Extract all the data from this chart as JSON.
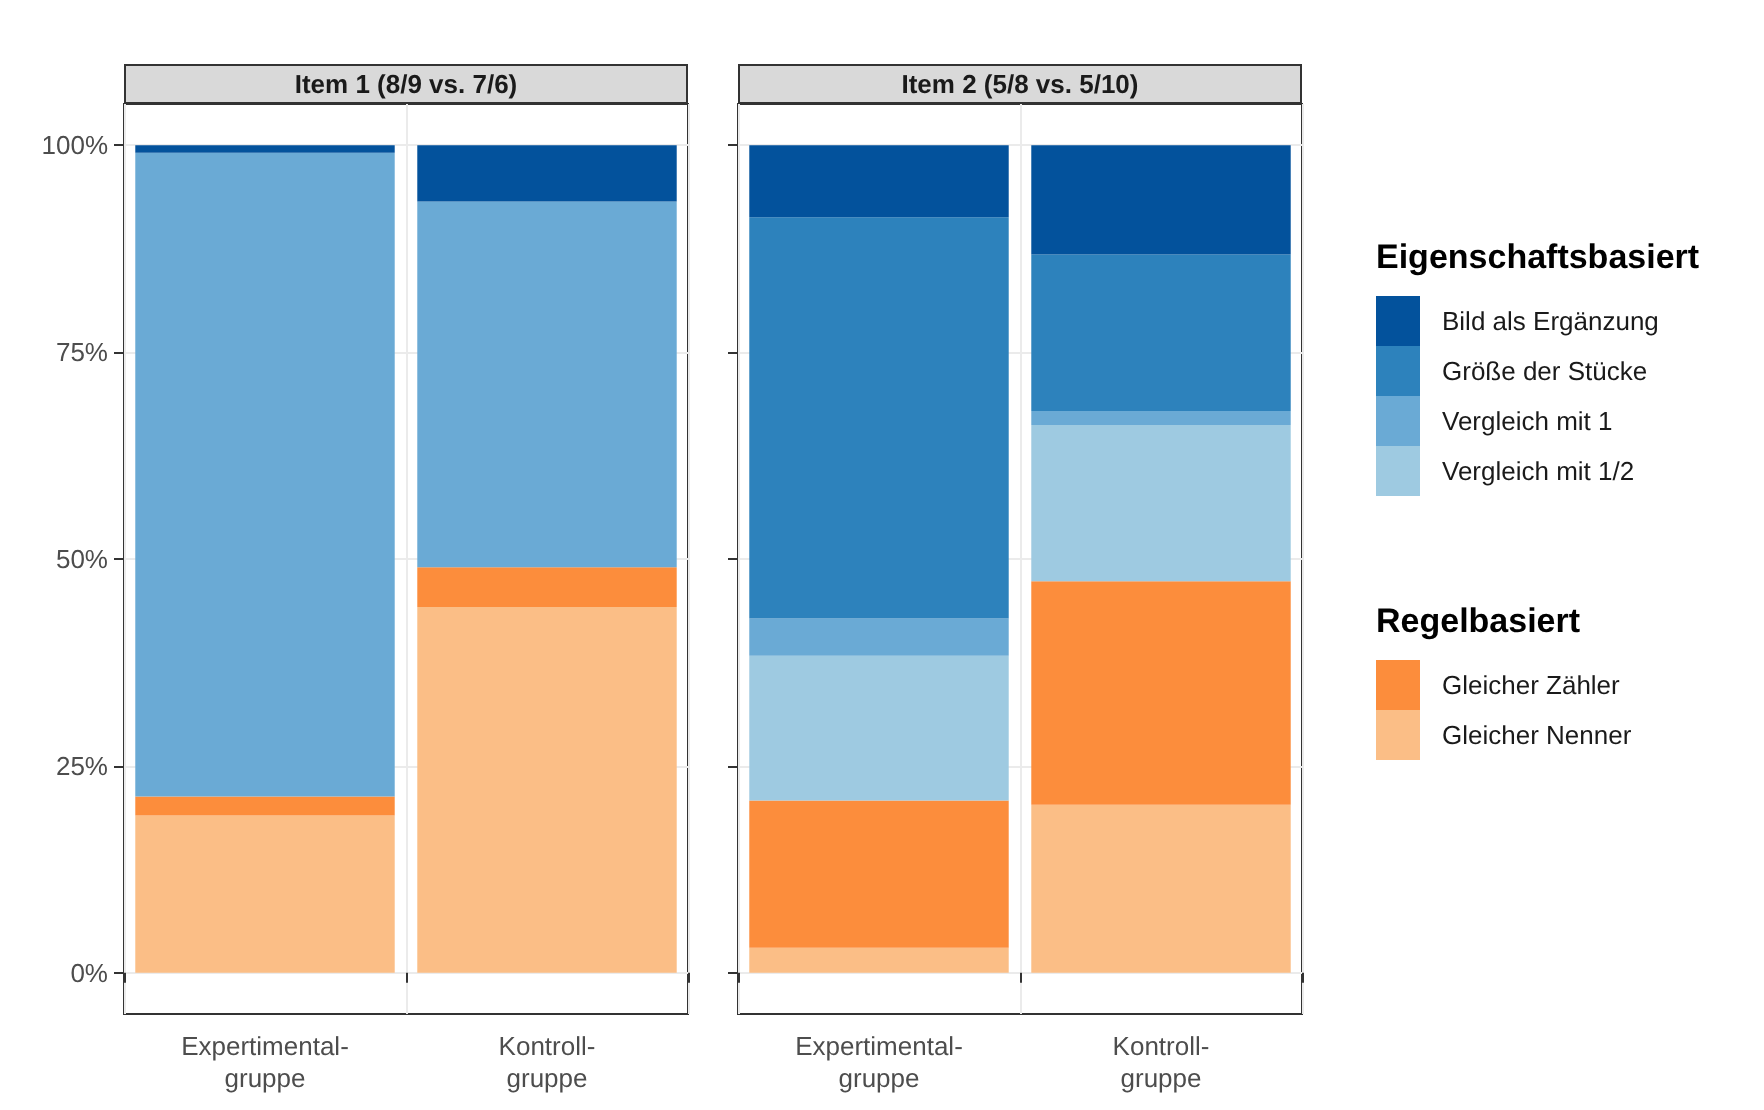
{
  "chart_data": [
    {
      "type": "bar",
      "title": "Item 1 (8/9 vs. 7/6)",
      "categories": [
        "Expertimental-\ngruppe",
        "Kontroll-\ngruppe"
      ],
      "stacked": true,
      "ylim": [
        -5,
        105
      ],
      "yticks": [
        {
          "value": 0,
          "label": "0%"
        },
        {
          "value": 25,
          "label": "25%"
        },
        {
          "value": 50,
          "label": "50%"
        },
        {
          "value": 75,
          "label": "75%"
        },
        {
          "value": 100,
          "label": "100%"
        }
      ],
      "grid": true,
      "legend": "right",
      "legend_title": "Eigenschaftsbasiert",
      "series": [
        {
          "name": "Gleicher Nenner",
          "color": "#fbbe86",
          "values": [
            19.0,
            44.2
          ]
        },
        {
          "name": "Gleicher Zähler",
          "color": "#fc8d3c",
          "values": [
            2.3,
            4.8
          ]
        },
        {
          "name": "Vergleich mit 1/2",
          "color": "#9ecae1",
          "values": [
            0,
            0
          ]
        },
        {
          "name": "Vergleich mit 1",
          "color": "#6aaad5",
          "values": [
            77.8,
            44.2
          ]
        },
        {
          "name": "Größe der Stücke",
          "color": "#2d82bc",
          "values": [
            0,
            0
          ]
        },
        {
          "name": "Bild als Ergänzung",
          "color": "#03529c",
          "values": [
            0.9,
            6.8
          ]
        }
      ]
    },
    {
      "type": "bar",
      "title": "Item 2 (5/8 vs. 5/10)",
      "categories": [
        "Expertimental-\ngruppe",
        "Kontroll-\ngruppe"
      ],
      "stacked": true,
      "ylim": [
        -5,
        105
      ],
      "yticks": [
        {
          "value": 0,
          "label": null
        },
        {
          "value": 25,
          "label": null
        },
        {
          "value": 50,
          "label": null
        },
        {
          "value": 75,
          "label": null
        },
        {
          "value": 100,
          "label": null
        }
      ],
      "grid": true,
      "tick_labels": "x",
      "legend": "right",
      "legend_title": "Regelbasiert",
      "series": [
        {
          "color": "#fbbe86",
          "values": [
            3.0,
            20.3
          ]
        },
        {
          "color": "#fc8d3c",
          "values": [
            17.8,
            27.0
          ]
        },
        {
          "color": "#9ecae1",
          "values": [
            17.5,
            18.9
          ]
        },
        {
          "color": "#6aaad5",
          "values": [
            4.5,
            1.7
          ]
        },
        {
          "color": "#2d82bc",
          "values": [
            48.5,
            18.9
          ]
        },
        {
          "color": "#03529c",
          "values": [
            8.7,
            13.2
          ]
        }
      ]
    }
  ]
}
